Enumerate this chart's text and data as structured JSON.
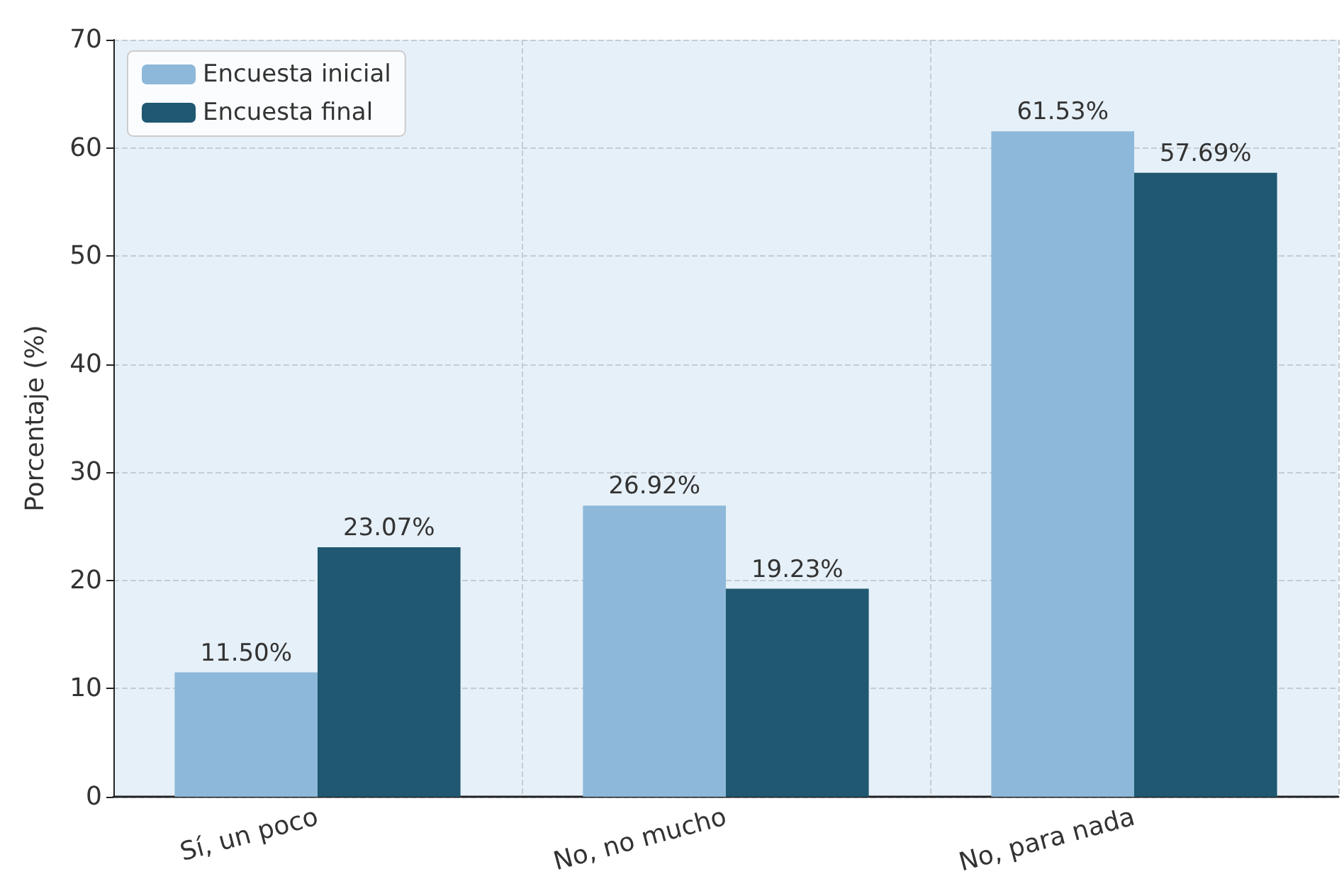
{
  "chart_data": {
    "type": "bar",
    "ylabel": "Porcentaje (%)",
    "categories": [
      "Sí, un poco",
      "No, no mucho",
      "No, para nada"
    ],
    "series": [
      {
        "name": "Encuesta inicial",
        "color": "#8db8d9",
        "values": [
          11.5,
          26.92,
          61.53
        ],
        "value_labels": [
          "11.50%",
          "26.92%",
          "61.53%"
        ]
      },
      {
        "name": "Encuesta final",
        "color": "#1f5870",
        "values": [
          23.07,
          19.23,
          57.69
        ],
        "value_labels": [
          "23.07%",
          "19.23%",
          "57.69%"
        ]
      }
    ],
    "ylim": [
      0,
      70
    ],
    "yticks": [
      0,
      10,
      20,
      30,
      40,
      50,
      60,
      70
    ],
    "grid": true,
    "legend": "top left"
  }
}
